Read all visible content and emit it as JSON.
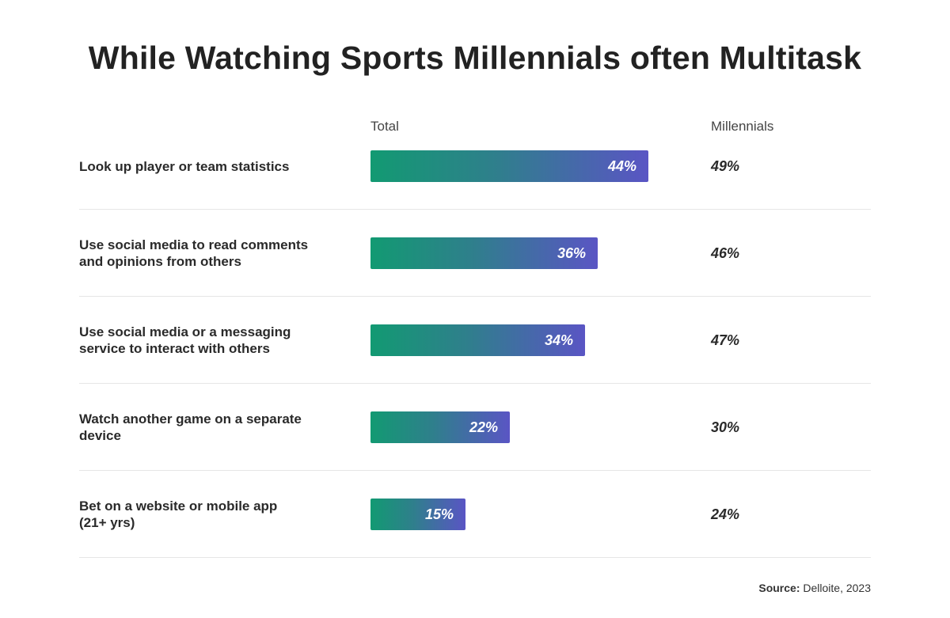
{
  "chart_data": {
    "type": "bar",
    "title": "While Watching Sports Millennials often Multitask",
    "series": [
      {
        "name": "Total",
        "values": [
          44,
          36,
          34,
          22,
          15
        ]
      },
      {
        "name": "Millennials",
        "values": [
          49,
          46,
          47,
          30,
          24
        ]
      }
    ],
    "categories": [
      "Look up player or team statistics",
      "Use social media to read comments and opinions from others",
      "Use social media or a messaging service to interact with others",
      "Watch another game on a separate device",
      "Bet on a website or mobile app (21+ yrs)"
    ],
    "category_lines": [
      [
        "Look up player or team statistics"
      ],
      [
        "Use social media to read comments",
        "and opinions from others"
      ],
      [
        "Use social media or a messaging",
        "service to interact with others"
      ],
      [
        "Watch another game on a separate",
        "device"
      ],
      [
        "Bet on a website or mobile app",
        "(21+ yrs)"
      ]
    ],
    "value_labels": {
      "total": [
        "44%",
        "36%",
        "34%",
        "22%",
        "15%"
      ],
      "millennials": [
        "49%",
        "46%",
        "47%",
        "30%",
        "24%"
      ]
    },
    "column_headers": {
      "total": "Total",
      "millennials": "Millennials"
    },
    "unit": "%"
  },
  "colors": {
    "bar_start": "#129a72",
    "bar_end": "#5a55c4",
    "divider": "#e6e6e6"
  },
  "source": {
    "label": "Source:",
    "value": "Delloite, 2023"
  }
}
